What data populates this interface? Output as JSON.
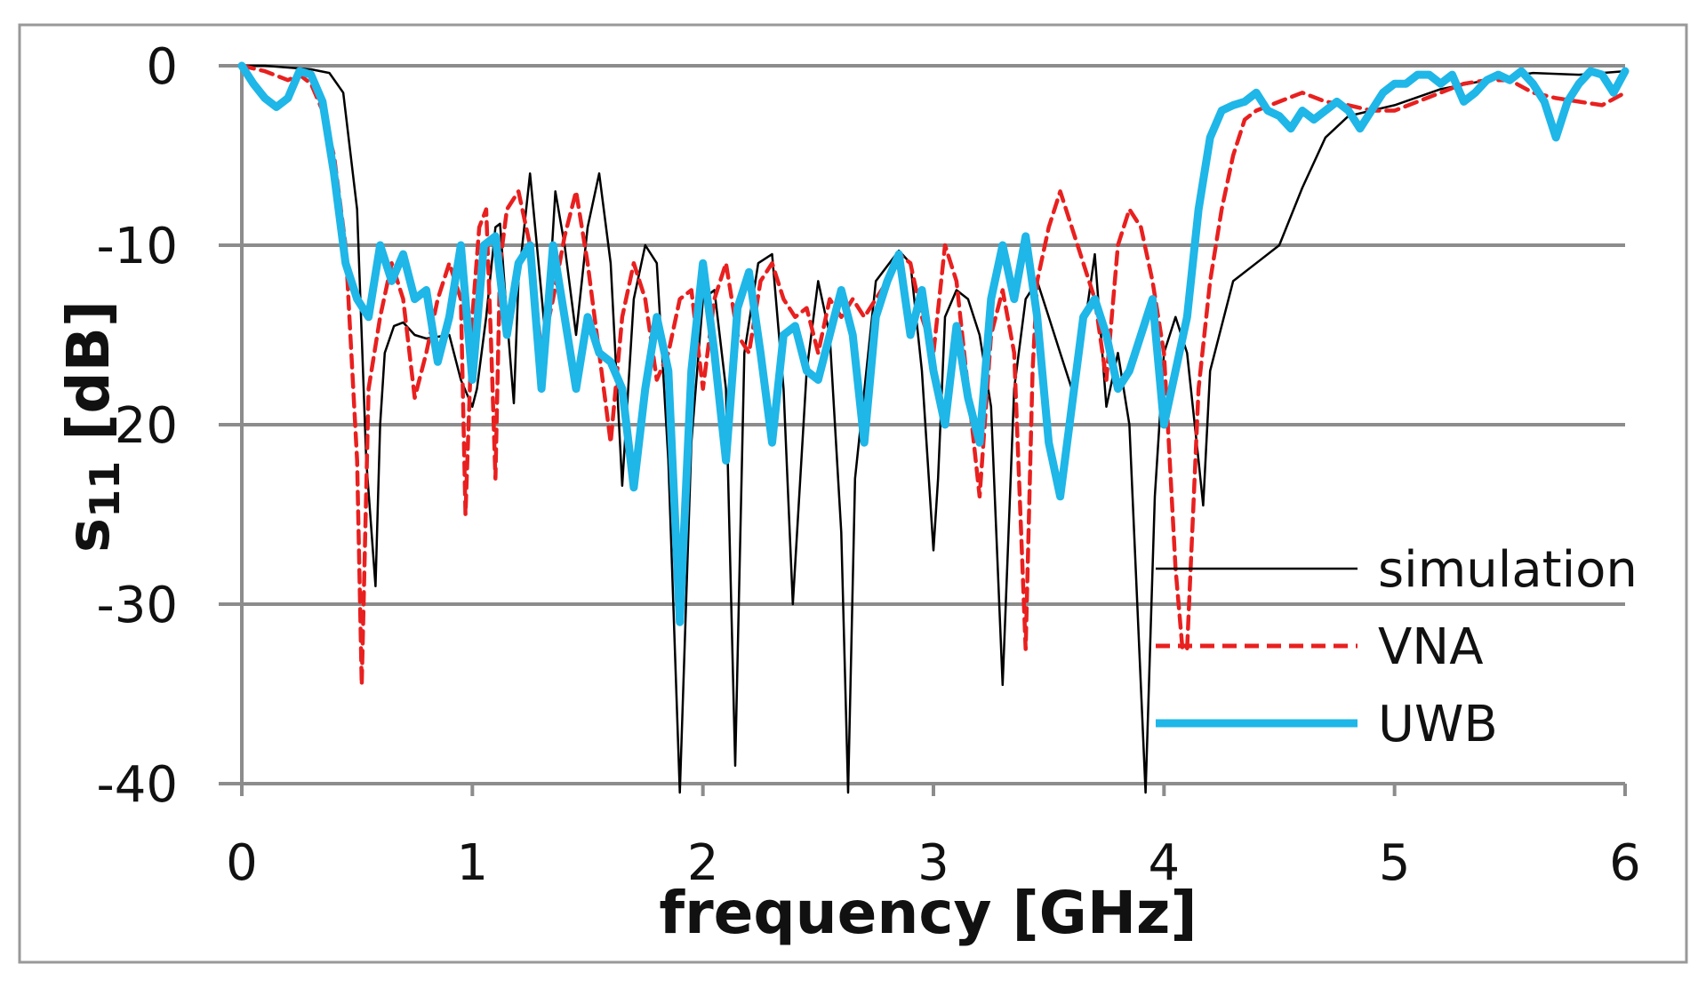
{
  "chart_data": {
    "type": "line",
    "xlabel": "frequency [GHz]",
    "ylabel_main": "s",
    "ylabel_sub": "11",
    "ylabel_unit": "[dB]",
    "xlim": [
      0,
      6
    ],
    "ylim": [
      -40,
      0
    ],
    "xticks": [
      "0",
      "1",
      "2",
      "3",
      "4",
      "5",
      "6"
    ],
    "yticks": [
      "0",
      "-10",
      "-20",
      "-30",
      "-40"
    ],
    "grid": "horizontal",
    "legend_position": "bottom-right",
    "colors": {
      "simulation": "#000000",
      "VNA": "#e8201f",
      "UWB": "#1fb6e8",
      "grid": "#8c8c8c",
      "frame": "#999999"
    },
    "series": [
      {
        "name": "simulation",
        "style": "thin-solid",
        "x": [
          0,
          0.1,
          0.2,
          0.3,
          0.38,
          0.44,
          0.5,
          0.54,
          0.58,
          0.6,
          0.62,
          0.66,
          0.7,
          0.75,
          0.8,
          0.9,
          0.95,
          1.0,
          1.02,
          1.06,
          1.1,
          1.12,
          1.15,
          1.18,
          1.2,
          1.25,
          1.28,
          1.32,
          1.36,
          1.4,
          1.45,
          1.5,
          1.55,
          1.6,
          1.65,
          1.7,
          1.75,
          1.8,
          1.85,
          1.9,
          1.95,
          2.0,
          2.05,
          2.1,
          2.14,
          2.18,
          2.24,
          2.3,
          2.35,
          2.39,
          2.45,
          2.5,
          2.55,
          2.6,
          2.63,
          2.66,
          2.75,
          2.85,
          2.9,
          2.95,
          3.0,
          3.02,
          3.05,
          3.1,
          3.15,
          3.2,
          3.25,
          3.3,
          3.35,
          3.4,
          3.45,
          3.5,
          3.55,
          3.6,
          3.65,
          3.7,
          3.75,
          3.8,
          3.85,
          3.92,
          3.96,
          4.0,
          4.05,
          4.1,
          4.15,
          4.17,
          4.2,
          4.3,
          4.4,
          4.5,
          4.6,
          4.7,
          4.8,
          5.0,
          5.2,
          5.4,
          5.6,
          5.8,
          6.0
        ],
        "values": [
          0,
          0,
          -0.1,
          -0.2,
          -0.4,
          -1.5,
          -8,
          -22,
          -29,
          -20,
          -16,
          -14.5,
          -14.3,
          -15,
          -15.2,
          -15,
          -17.5,
          -19,
          -18,
          -14,
          -9,
          -8.8,
          -14,
          -18.8,
          -12,
          -6,
          -10,
          -15.5,
          -7,
          -10,
          -15,
          -9,
          -6,
          -11,
          -23.4,
          -13,
          -10,
          -11,
          -22,
          -40.5,
          -21,
          -13,
          -12.5,
          -18,
          -39,
          -16,
          -11,
          -10.5,
          -18,
          -30,
          -17,
          -12,
          -15,
          -26,
          -40.5,
          -23,
          -12,
          -10.3,
          -11,
          -17,
          -27,
          -23,
          -14,
          -12.5,
          -13,
          -15,
          -19,
          -34.5,
          -18,
          -13,
          -12,
          -14,
          -16,
          -18,
          -15,
          -10.5,
          -19,
          -16,
          -20,
          -40.5,
          -24,
          -16,
          -14,
          -16,
          -22,
          -24.5,
          -17,
          -12,
          -11,
          -10,
          -6.8,
          -4,
          -2.8,
          -2.2,
          -1.3,
          -0.8,
          -0.4,
          -0.5,
          -0.3
        ]
      },
      {
        "name": "VNA",
        "style": "dashed",
        "x": [
          0,
          0.1,
          0.2,
          0.25,
          0.3,
          0.35,
          0.4,
          0.45,
          0.5,
          0.52,
          0.55,
          0.6,
          0.65,
          0.7,
          0.75,
          0.8,
          0.85,
          0.9,
          0.95,
          0.97,
          1.0,
          1.03,
          1.06,
          1.08,
          1.1,
          1.12,
          1.15,
          1.2,
          1.25,
          1.3,
          1.35,
          1.4,
          1.45,
          1.5,
          1.55,
          1.6,
          1.65,
          1.7,
          1.75,
          1.8,
          1.85,
          1.9,
          1.95,
          2.0,
          2.05,
          2.1,
          2.15,
          2.2,
          2.25,
          2.3,
          2.35,
          2.4,
          2.45,
          2.5,
          2.55,
          2.6,
          2.65,
          2.7,
          2.8,
          2.85,
          2.9,
          2.95,
          3.0,
          3.05,
          3.1,
          3.15,
          3.2,
          3.25,
          3.3,
          3.35,
          3.4,
          3.43,
          3.45,
          3.5,
          3.55,
          3.6,
          3.65,
          3.7,
          3.75,
          3.8,
          3.85,
          3.9,
          3.95,
          4.0,
          4.05,
          4.08,
          4.1,
          4.15,
          4.2,
          4.25,
          4.3,
          4.35,
          4.4,
          4.5,
          4.6,
          4.7,
          4.8,
          4.9,
          5.0,
          5.1,
          5.2,
          5.3,
          5.4,
          5.5,
          5.6,
          5.7,
          5.8,
          5.9,
          6.0
        ],
        "values": [
          0,
          -0.3,
          -0.8,
          -0.5,
          -1.0,
          -2.5,
          -5,
          -10,
          -22,
          -34.5,
          -18,
          -14,
          -11,
          -13,
          -18.5,
          -16,
          -13,
          -11,
          -13,
          -25,
          -14,
          -9,
          -8,
          -15,
          -23,
          -11,
          -8,
          -7,
          -10,
          -16,
          -13,
          -9.5,
          -7,
          -11,
          -16,
          -21,
          -14,
          -11,
          -13,
          -17.5,
          -16,
          -13,
          -12.5,
          -18,
          -13,
          -11,
          -15,
          -16,
          -12,
          -11,
          -13,
          -14,
          -13.5,
          -16,
          -13,
          -14,
          -13,
          -14,
          -12,
          -10.5,
          -11,
          -14,
          -16,
          -10,
          -12,
          -18,
          -24,
          -15,
          -12.5,
          -16,
          -32.5,
          -17,
          -12,
          -9,
          -7,
          -9,
          -11,
          -13,
          -17.5,
          -10,
          -8,
          -9,
          -12,
          -16,
          -28,
          -32.5,
          -32.5,
          -18,
          -12,
          -8,
          -5,
          -3,
          -2.5,
          -2,
          -1.5,
          -2,
          -2.2,
          -2.5,
          -2.5,
          -2,
          -1.5,
          -1,
          -0.8,
          -0.8,
          -1.5,
          -1.8,
          -2,
          -2.2,
          -1.5
        ]
      },
      {
        "name": "UWB",
        "style": "thick-solid",
        "x": [
          0,
          0.05,
          0.1,
          0.15,
          0.2,
          0.25,
          0.3,
          0.35,
          0.4,
          0.45,
          0.5,
          0.55,
          0.6,
          0.65,
          0.7,
          0.75,
          0.8,
          0.85,
          0.9,
          0.95,
          1.0,
          1.05,
          1.1,
          1.15,
          1.2,
          1.25,
          1.3,
          1.35,
          1.4,
          1.45,
          1.5,
          1.55,
          1.6,
          1.65,
          1.7,
          1.75,
          1.8,
          1.85,
          1.9,
          1.95,
          2.0,
          2.05,
          2.1,
          2.15,
          2.2,
          2.25,
          2.3,
          2.35,
          2.4,
          2.45,
          2.5,
          2.55,
          2.6,
          2.65,
          2.7,
          2.75,
          2.8,
          2.85,
          2.9,
          2.95,
          3.0,
          3.05,
          3.1,
          3.15,
          3.2,
          3.25,
          3.3,
          3.35,
          3.4,
          3.45,
          3.5,
          3.55,
          3.6,
          3.65,
          3.7,
          3.75,
          3.8,
          3.85,
          3.9,
          3.95,
          4.0,
          4.05,
          4.1,
          4.15,
          4.2,
          4.25,
          4.3,
          4.35,
          4.4,
          4.45,
          4.5,
          4.55,
          4.6,
          4.65,
          4.7,
          4.75,
          4.8,
          4.85,
          4.9,
          4.95,
          5.0,
          5.05,
          5.1,
          5.15,
          5.2,
          5.25,
          5.3,
          5.35,
          5.4,
          5.45,
          5.5,
          5.55,
          5.6,
          5.65,
          5.7,
          5.75,
          5.8,
          5.85,
          5.9,
          5.95,
          6.0
        ],
        "values": [
          0,
          -1,
          -1.8,
          -2.3,
          -1.8,
          -0.3,
          -0.5,
          -2,
          -6,
          -11,
          -13,
          -14,
          -10,
          -12,
          -10.5,
          -13,
          -12.5,
          -16.5,
          -14,
          -10,
          -17.5,
          -10,
          -9.5,
          -15,
          -11,
          -10,
          -18,
          -10,
          -14,
          -18,
          -14,
          -16,
          -16.5,
          -18,
          -23.5,
          -18,
          -14,
          -17,
          -31,
          -17,
          -11,
          -16,
          -22,
          -13.5,
          -11.5,
          -16,
          -21,
          -15,
          -14.5,
          -17,
          -17.5,
          -15,
          -12.5,
          -15,
          -21,
          -14,
          -12,
          -10.5,
          -15,
          -12.5,
          -17,
          -20,
          -14.5,
          -18.5,
          -21,
          -13,
          -10,
          -13,
          -9.5,
          -14,
          -21,
          -24,
          -19,
          -14,
          -13,
          -15,
          -18,
          -17,
          -15,
          -13,
          -20,
          -17,
          -14,
          -8,
          -4,
          -2.5,
          -2.2,
          -2,
          -1.5,
          -2.5,
          -2.8,
          -3.5,
          -2.5,
          -3,
          -2.5,
          -2,
          -2.5,
          -3.5,
          -2.5,
          -1.5,
          -1,
          -1,
          -0.5,
          -0.5,
          -1,
          -0.5,
          -2,
          -1.5,
          -0.8,
          -0.5,
          -0.8,
          -0.3,
          -1,
          -2,
          -4,
          -2,
          -1,
          -0.3,
          -0.5,
          -1.5,
          -0.3
        ]
      }
    ]
  }
}
